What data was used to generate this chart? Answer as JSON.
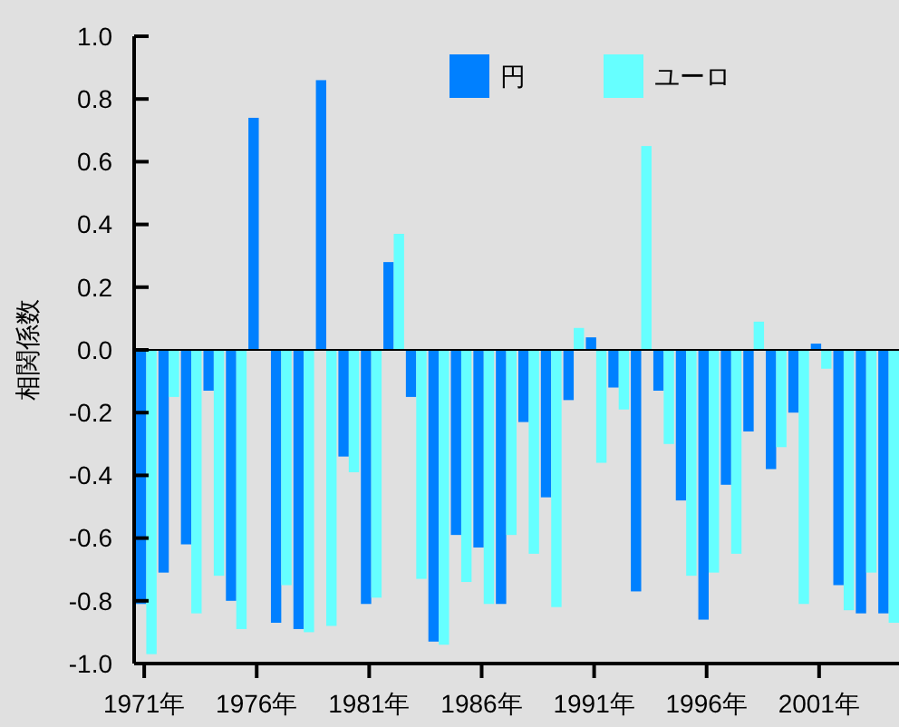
{
  "chart_data": {
    "type": "bar",
    "ylabel": "相関係数",
    "categories": [
      "1971年",
      null,
      null,
      null,
      null,
      "1976年",
      null,
      null,
      null,
      null,
      "1981年",
      null,
      null,
      null,
      null,
      "1986年",
      null,
      null,
      null,
      null,
      "1991年",
      null,
      null,
      null,
      null,
      "1996年",
      null,
      null,
      null,
      null,
      "2001年",
      null,
      null,
      null
    ],
    "series": [
      {
        "name": "円",
        "color": "#0080ff",
        "values": [
          -0.81,
          -0.71,
          -0.62,
          -0.13,
          -0.8,
          0.74,
          -0.87,
          -0.89,
          0.86,
          -0.34,
          -0.81,
          0.28,
          -0.15,
          -0.93,
          -0.59,
          -0.63,
          -0.81,
          -0.23,
          -0.47,
          -0.16,
          0.04,
          -0.12,
          -0.77,
          -0.13,
          -0.48,
          -0.86,
          -0.43,
          -0.26,
          -0.38,
          -0.2,
          0.02,
          -0.75,
          -0.84,
          -0.84
        ]
      },
      {
        "name": "ユーロ",
        "color": "#66ffff",
        "values": [
          -0.97,
          -0.15,
          -0.84,
          -0.72,
          -0.89,
          0,
          -0.75,
          -0.9,
          -0.88,
          -0.39,
          -0.79,
          0.37,
          -0.73,
          -0.94,
          -0.74,
          -0.81,
          -0.59,
          -0.65,
          -0.82,
          0.07,
          -0.36,
          -0.19,
          0.65,
          -0.3,
          -0.72,
          -0.71,
          -0.65,
          0.09,
          -0.31,
          -0.81,
          -0.06,
          -0.83,
          -0.71,
          -0.87
        ]
      }
    ],
    "ylim": [
      -1,
      1
    ],
    "yticks": [
      {
        "value": -1,
        "label": "-1.0"
      },
      {
        "value": -0.8,
        "label": "-0.8"
      },
      {
        "value": -0.6,
        "label": "-0.6"
      },
      {
        "value": -0.4,
        "label": "-0.4"
      },
      {
        "value": -0.2,
        "label": "-0.2"
      },
      {
        "value": 0,
        "label": "0.0"
      },
      {
        "value": 0.2,
        "label": "0.2"
      },
      {
        "value": 0.4,
        "label": "0.4"
      },
      {
        "value": 0.6,
        "label": "0.6"
      },
      {
        "value": 0.8,
        "label": "0.8"
      },
      {
        "value": 1,
        "label": "1.0"
      }
    ],
    "ref_lines": [
      {
        "axis": "y",
        "value": 0,
        "color": "#000000"
      }
    ],
    "legend": "top",
    "grid": false
  }
}
